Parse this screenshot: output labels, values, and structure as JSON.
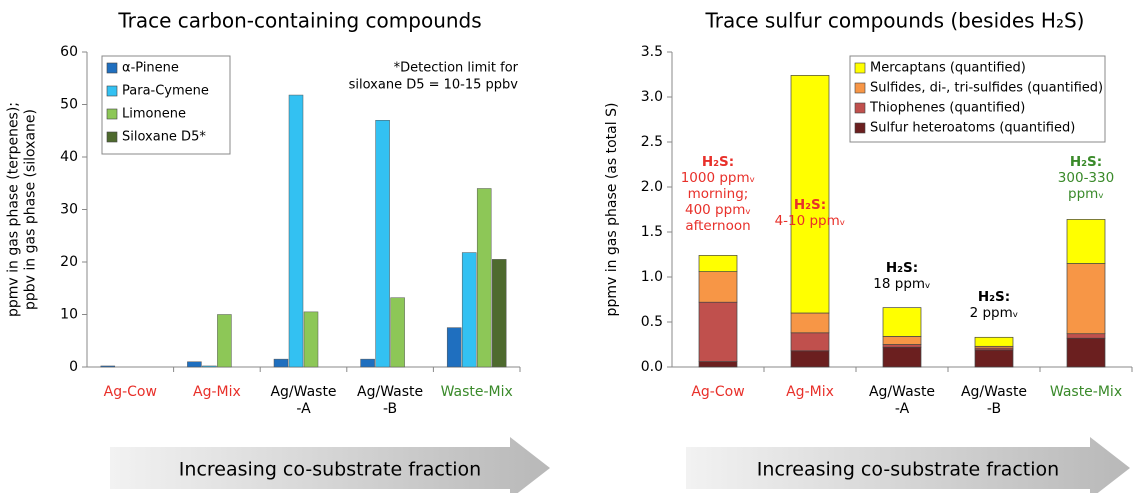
{
  "chart_data": [
    {
      "type": "bar",
      "title": "Trace carbon-containing compounds",
      "ylabel": [
        "ppmv in gas phase (terpenes);",
        "ppbv in gas phase (siloxane)"
      ],
      "annotation": [
        "*Detection limit for",
        "siloxane D5 = 10-15 ppbv"
      ],
      "categories": [
        [
          "Ag-Cow"
        ],
        [
          "Ag-Mix"
        ],
        [
          "Ag/Waste",
          "-A"
        ],
        [
          "Ag/Waste",
          "-B"
        ],
        [
          "Waste-Mix"
        ]
      ],
      "category_colors": [
        "#e8302a",
        "#e8302a",
        "#000000",
        "#000000",
        "#3a8a2a"
      ],
      "series": [
        {
          "name": "α-Pinene",
          "color": "#1f6fbf",
          "values": [
            0.2,
            1.0,
            1.5,
            1.5,
            7.5
          ]
        },
        {
          "name": "Para-Cymene",
          "color": "#33c1f2",
          "values": [
            0,
            0.2,
            51.8,
            47,
            21.8
          ]
        },
        {
          "name": "Limonene",
          "color": "#8dc757",
          "values": [
            0,
            10,
            10.5,
            13.2,
            34
          ]
        },
        {
          "name": "Siloxane D5*",
          "color": "#4e6a2e",
          "values": [
            0,
            0,
            0,
            0,
            20.5
          ]
        }
      ],
      "ylim": [
        0,
        60
      ],
      "yticks": [
        0,
        10,
        20,
        30,
        40,
        50,
        60
      ],
      "arrow_label": "Increasing co-substrate fraction"
    },
    {
      "type": "stacked_bar",
      "title": "Trace sulfur compounds (besides H₂S)",
      "ylabel": [
        "ppmv in gas phase (as total S)"
      ],
      "categories": [
        [
          "Ag-Cow"
        ],
        [
          "Ag-Mix"
        ],
        [
          "Ag/Waste",
          "-A"
        ],
        [
          "Ag/Waste",
          "-B"
        ],
        [
          "Waste-Mix"
        ]
      ],
      "category_colors": [
        "#e8302a",
        "#e8302a",
        "#000000",
        "#000000",
        "#3a8a2a"
      ],
      "series": [
        {
          "name": "Sulfur heteroatoms (quantified)",
          "color": "#6b1f1f",
          "values": [
            0.06,
            0.18,
            0.22,
            0.19,
            0.32
          ]
        },
        {
          "name": "Thiophenes (quantified)",
          "color": "#c0504d",
          "values": [
            0.66,
            0.2,
            0.03,
            0.02,
            0.05
          ]
        },
        {
          "name": "Sulfides, di-, tri-sulfides (quantified)",
          "color": "#f79646",
          "values": [
            0.34,
            0.22,
            0.09,
            0.02,
            0.78
          ]
        },
        {
          "name": "Mercaptans (quantified)",
          "color": "#ffff00",
          "values": [
            0.18,
            2.64,
            0.32,
            0.1,
            0.49
          ]
        }
      ],
      "ylim": [
        0,
        3.5
      ],
      "yticks": [
        {
          "value": 0,
          "label": "0.0"
        },
        0.5,
        {
          "value": 1,
          "label": "1.0"
        },
        1.5,
        {
          "value": 2,
          "label": "2.0"
        },
        2.5,
        {
          "value": 3,
          "label": "3.0"
        },
        3.5
      ],
      "annotations": [
        {
          "lines": [
            "H₂S:",
            "1000 ppmᵥ",
            "morning;",
            "400 ppmᵥ",
            "afternoon"
          ],
          "color": "#e8302a"
        },
        {
          "lines": [
            "H₂S:",
            "4-10 ppmᵥ"
          ],
          "color": "#e8302a"
        },
        {
          "lines": [
            "H₂S:",
            "18 ppmᵥ"
          ],
          "color": "#000000"
        },
        {
          "lines": [
            "H₂S:",
            "2 ppmᵥ"
          ],
          "color": "#000000"
        },
        {
          "lines": [
            "H₂S:",
            "300-330",
            "ppmᵥ"
          ],
          "color": "#3a8a2a"
        }
      ],
      "arrow_label": "Increasing co-substrate fraction"
    }
  ]
}
